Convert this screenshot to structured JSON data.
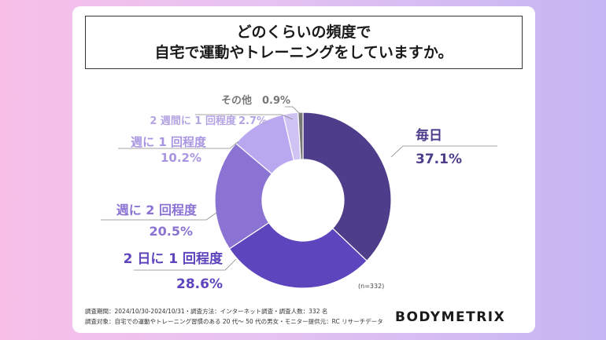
{
  "title": {
    "line1": "どのくらいの頻度で",
    "line2": "自宅で運動やトレーニングをしていますか。"
  },
  "chart_data": {
    "type": "pie",
    "donut": true,
    "sample_note": "(n=332)",
    "slices": [
      {
        "label": "毎日",
        "value": 37.1,
        "value_text": "37.1%",
        "color": "#4e3d8a"
      },
      {
        "label": "2 日に 1 回程度",
        "value": 28.6,
        "value_text": "28.6%",
        "color": "#5d45bd"
      },
      {
        "label": "週に 2 回程度",
        "value": 20.5,
        "value_text": "20.5%",
        "color": "#8a73d3"
      },
      {
        "label": "週に 1 回程度",
        "value": 10.2,
        "value_text": "10.2%",
        "color": "#b9a7ef"
      },
      {
        "label": "2 週間に 1 回程度",
        "value": 2.7,
        "value_text": "2.7%",
        "color": "#cfc3f3"
      },
      {
        "label": "その他",
        "value": 0.9,
        "value_text": "0.9%",
        "color": "#777777"
      }
    ]
  },
  "footer": {
    "line1": "調査期間：2024/10/30-2024/10/31・調査方法：インターネット調査・調査人数：332 名",
    "line2": "調査対象：自宅での運動やトレーニング習慣のある 20 代〜 50 代の男女・モニター提供元：RC リサーチデータ"
  },
  "brand": "BODYMETRIX"
}
